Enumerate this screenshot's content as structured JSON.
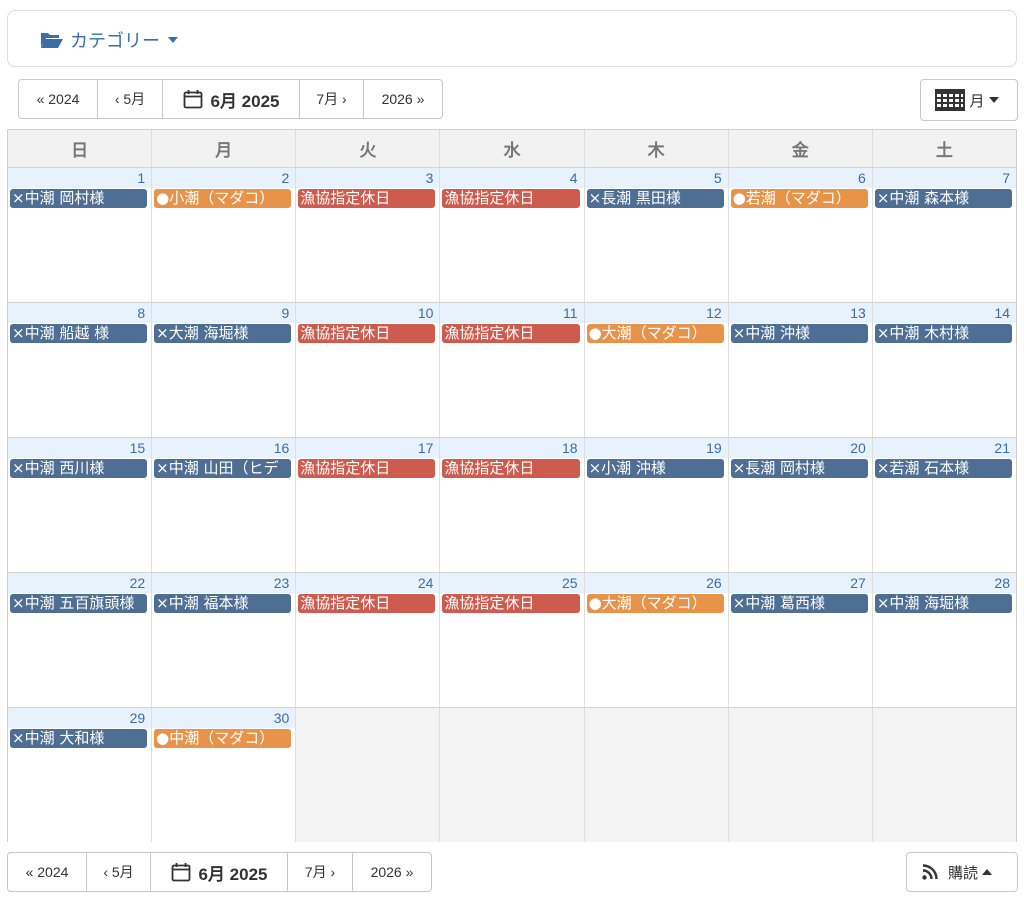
{
  "category": {
    "label": "カテゴリー"
  },
  "nav": {
    "prev_year": "« 2024",
    "prev_month": "‹ 5月",
    "current": "6月 2025",
    "next_month": "7月 ›",
    "next_year": "2026 »"
  },
  "view": {
    "label": "月"
  },
  "subscribe": {
    "label": "購読"
  },
  "weekdays": [
    "日",
    "月",
    "火",
    "水",
    "木",
    "金",
    "土"
  ],
  "colors": {
    "blue": "#4e6e93",
    "orange": "#e8934a",
    "red": "#cd5c4f"
  },
  "weeks": [
    [
      {
        "day": "1",
        "event": "×中潮 岡村様",
        "color": "blue"
      },
      {
        "day": "2",
        "event": "●小潮（マダコ）",
        "color": "orange"
      },
      {
        "day": "3",
        "event": "漁協指定休日",
        "color": "red"
      },
      {
        "day": "4",
        "event": "漁協指定休日",
        "color": "red"
      },
      {
        "day": "5",
        "event": "×長潮 黒田様",
        "color": "blue"
      },
      {
        "day": "6",
        "event": "●若潮（マダコ）",
        "color": "orange"
      },
      {
        "day": "7",
        "event": "×中潮 森本様",
        "color": "blue"
      }
    ],
    [
      {
        "day": "8",
        "event": "×中潮 船越 様",
        "color": "blue"
      },
      {
        "day": "9",
        "event": "×大潮 海堀様",
        "color": "blue"
      },
      {
        "day": "10",
        "event": "漁協指定休日",
        "color": "red"
      },
      {
        "day": "11",
        "event": "漁協指定休日",
        "color": "red"
      },
      {
        "day": "12",
        "event": "●大潮（マダコ）",
        "color": "orange"
      },
      {
        "day": "13",
        "event": "×中潮 沖様",
        "color": "blue"
      },
      {
        "day": "14",
        "event": "×中潮 木村様",
        "color": "blue"
      }
    ],
    [
      {
        "day": "15",
        "event": "×中潮 西川様",
        "color": "blue"
      },
      {
        "day": "16",
        "event": "×中潮 山田（ヒデ",
        "color": "blue"
      },
      {
        "day": "17",
        "event": "漁協指定休日",
        "color": "red"
      },
      {
        "day": "18",
        "event": "漁協指定休日",
        "color": "red"
      },
      {
        "day": "19",
        "event": "×小潮 沖様",
        "color": "blue"
      },
      {
        "day": "20",
        "event": "×長潮 岡村様",
        "color": "blue"
      },
      {
        "day": "21",
        "event": "×若潮 石本様",
        "color": "blue"
      }
    ],
    [
      {
        "day": "22",
        "event": "×中潮 五百旗頭様",
        "color": "blue"
      },
      {
        "day": "23",
        "event": "×中潮 福本様",
        "color": "blue"
      },
      {
        "day": "24",
        "event": "漁協指定休日",
        "color": "red"
      },
      {
        "day": "25",
        "event": "漁協指定休日",
        "color": "red"
      },
      {
        "day": "26",
        "event": "●大潮（マダコ）",
        "color": "orange"
      },
      {
        "day": "27",
        "event": "×中潮 葛西様",
        "color": "blue"
      },
      {
        "day": "28",
        "event": "×中潮 海堀様",
        "color": "blue"
      }
    ],
    [
      {
        "day": "29",
        "event": "×中潮 大和様",
        "color": "blue"
      },
      {
        "day": "30",
        "event": "●中潮（マダコ）",
        "color": "orange"
      },
      {
        "day": "",
        "event": "",
        "color": ""
      },
      {
        "day": "",
        "event": "",
        "color": ""
      },
      {
        "day": "",
        "event": "",
        "color": ""
      },
      {
        "day": "",
        "event": "",
        "color": ""
      },
      {
        "day": "",
        "event": "",
        "color": ""
      }
    ]
  ]
}
